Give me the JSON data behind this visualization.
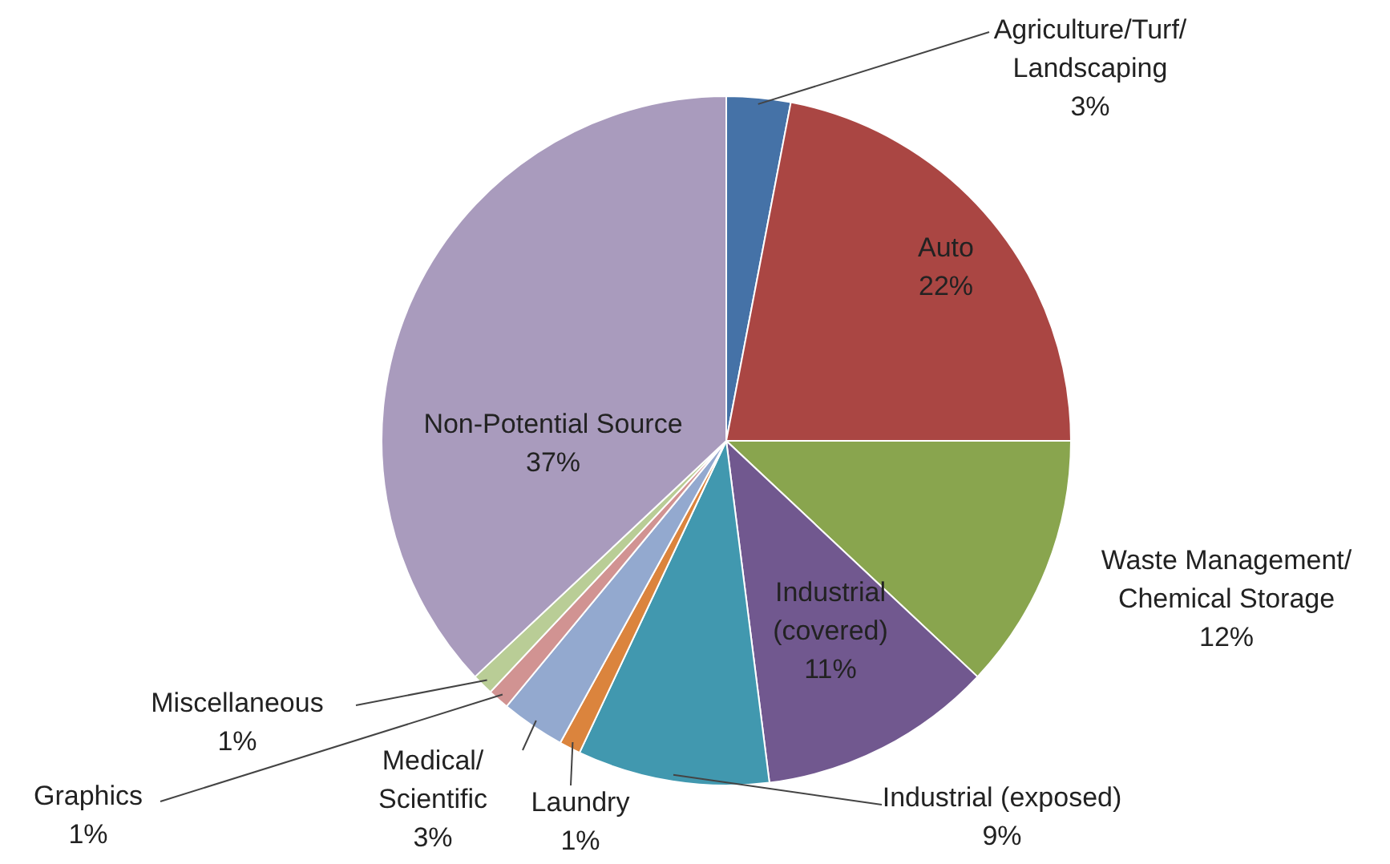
{
  "chart_data": {
    "type": "pie",
    "categories": [
      "Agriculture/Turf/Landscaping",
      "Auto",
      "Waste Management/Chemical Storage",
      "Industrial (covered)",
      "Industrial (exposed)",
      "Laundry",
      "Medical/Scientific",
      "Graphics",
      "Miscellaneous",
      "Non-Potential Source"
    ],
    "values": [
      3,
      22,
      12,
      11,
      9,
      1,
      3,
      1,
      1,
      37
    ],
    "value_labels": [
      "3%",
      "22%",
      "12%",
      "11%",
      "9%",
      "1%",
      "3%",
      "1%",
      "1%",
      "37%"
    ],
    "colors": [
      "#4572a7",
      "#aa4643",
      "#89a54e",
      "#71588f",
      "#4198af",
      "#db843d",
      "#93a9cf",
      "#d19392",
      "#b9cd96",
      "#a99bbd"
    ]
  }
}
